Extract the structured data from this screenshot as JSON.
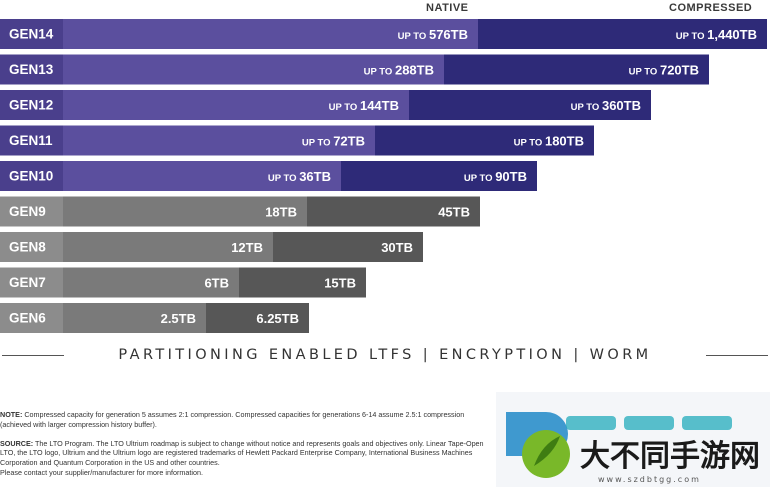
{
  "header": {
    "native_label": "NATIVE",
    "compressed_label": "COMPRESSED"
  },
  "chart_data": {
    "type": "bar",
    "orientation": "horizontal",
    "stacked": true,
    "categories": [
      "GEN14",
      "GEN13",
      "GEN12",
      "GEN11",
      "GEN10",
      "GEN9",
      "GEN8",
      "GEN7",
      "GEN6"
    ],
    "series": [
      {
        "name": "NATIVE",
        "values": [
          576,
          288,
          144,
          72,
          36,
          18,
          12,
          6,
          2.5
        ],
        "labels": [
          "576TB",
          "288TB",
          "144TB",
          "72TB",
          "36TB",
          "18TB",
          "12TB",
          "6TB",
          "2.5TB"
        ]
      },
      {
        "name": "COMPRESSED",
        "values": [
          1440,
          720,
          360,
          180,
          90,
          45,
          30,
          15,
          6.25
        ],
        "labels": [
          "1,440TB",
          "720TB",
          "360TB",
          "180TB",
          "90TB",
          "45TB",
          "30TB",
          "15TB",
          "6.25TB"
        ]
      }
    ],
    "prefixed": [
      true,
      true,
      true,
      true,
      true,
      false,
      false,
      false,
      false
    ],
    "prefix": "UP TO",
    "colors": {
      "future_native": "#5b4f9e",
      "future_compressed": "#2e2a78",
      "future_label_bg": "#4a3f8c",
      "past_native": "#7a7a7a",
      "past_compressed": "#575757",
      "past_label_bg": "#8c8c8c"
    }
  },
  "features_line": "PARTITIONING ENABLED LTFS  |  ENCRYPTION  |  WORM",
  "notes": {
    "note_head": "NOTE:",
    "note_text": "Compressed capacity for generation 5 assumes 2:1 compression. Compressed capacities for generations 6-14 assume 2.5:1 compression (achieved with larger compression history buffer).",
    "source_head": "SOURCE:",
    "source_text": "The LTO Program. The LTO Ultrium roadmap is subject to change without notice and represents goals and objectives only. Linear Tape-Open LTO, the LTO logo, Ultrium and the Ultrium logo are registered trademarks of Hewlett Packard Enterprise Company, International Business Machines Corporation and Quantum Corporation in the US and other countries.",
    "contact_text": "Please contact your supplier/manufacturer for more information."
  },
  "watermark": {
    "text": "大不同手游网",
    "url": "www.szdbtgg.com"
  }
}
